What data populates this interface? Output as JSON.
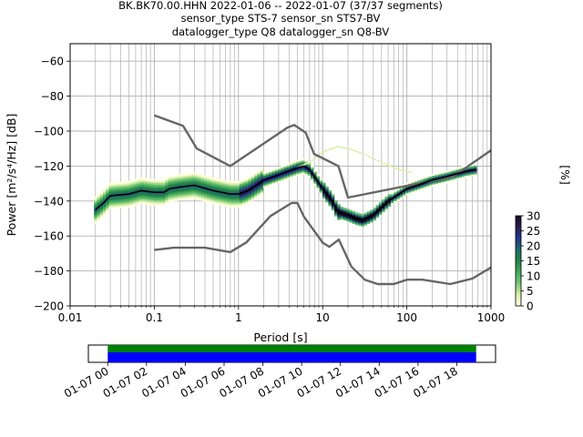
{
  "chart_data": [
    {
      "type": "heatmap",
      "title_lines": [
        "BK.BK70.00.HHN   2022-01-06 -- 2022-01-07  (37/37 segments)",
        "sensor_type STS-7 sensor_sn STS7-BV",
        "datalogger_type Q8 datalogger_sn Q8-BV"
      ],
      "xlabel": "Period [s]",
      "ylabel": "Power [m²/s⁴/Hz] [dB]",
      "x_scale": "log",
      "xlim": [
        0.01,
        1000
      ],
      "ylim": [
        -200,
        -50
      ],
      "x_tick_labels": [
        "0.01",
        "0.1",
        "1",
        "10",
        "100",
        "1000"
      ],
      "y_tick_labels": [
        "−60",
        "−80",
        "−100",
        "−120",
        "−140",
        "−160",
        "−180",
        "−200"
      ],
      "grid": true,
      "colorbar": {
        "label": "[%]",
        "range": [
          0,
          30
        ],
        "tick_labels": [
          "0",
          "5",
          "10",
          "15",
          "20",
          "25",
          "30"
        ],
        "colors": [
          "#ffffe5",
          "#d9f0a3",
          "#78c679",
          "#41ab5d",
          "#238443",
          "#1d6e6b",
          "#253494",
          "#2c1e4f",
          "#120a1f"
        ]
      },
      "noise_model_color": "#666666",
      "high_noise_model": [
        [
          0.1,
          -91
        ],
        [
          0.22,
          -97
        ],
        [
          0.32,
          -110
        ],
        [
          0.8,
          -120
        ],
        [
          3.8,
          -98
        ],
        [
          4.6,
          -96.5
        ],
        [
          6.3,
          -101
        ],
        [
          7.9,
          -113
        ],
        [
          15.4,
          -120
        ],
        [
          20,
          -138
        ],
        [
          354.8,
          -126
        ],
        [
          1000,
          -111
        ]
      ],
      "low_noise_model": [
        [
          0.1,
          -168
        ],
        [
          0.17,
          -166.7
        ],
        [
          0.4,
          -166.7
        ],
        [
          0.8,
          -169.2
        ],
        [
          1.24,
          -163.7
        ],
        [
          2.4,
          -148.6
        ],
        [
          4.3,
          -141.1
        ],
        [
          5,
          -141.1
        ],
        [
          6,
          -149
        ],
        [
          10,
          -163.8
        ],
        [
          12,
          -166.2
        ],
        [
          15.6,
          -162.1
        ],
        [
          21.9,
          -177.5
        ],
        [
          31.6,
          -185
        ],
        [
          45,
          -187.5
        ],
        [
          70,
          -187.5
        ],
        [
          101,
          -185
        ],
        [
          154,
          -185
        ],
        [
          328,
          -187.5
        ],
        [
          600,
          -184.4
        ],
        [
          1000,
          -178
        ]
      ],
      "mean_curve_color": "#000000",
      "mean_curve": [
        [
          0.02,
          -145
        ],
        [
          0.025,
          -141
        ],
        [
          0.03,
          -137
        ],
        [
          0.05,
          -136
        ],
        [
          0.07,
          -134
        ],
        [
          0.1,
          -135
        ],
        [
          0.13,
          -135
        ],
        [
          0.15,
          -133
        ],
        [
          0.2,
          -132
        ],
        [
          0.3,
          -131
        ],
        [
          0.5,
          -134
        ],
        [
          0.8,
          -136
        ],
        [
          1.0,
          -136
        ],
        [
          1.3,
          -134
        ],
        [
          2.0,
          -128
        ],
        [
          3.0,
          -125
        ],
        [
          5.0,
          -121
        ],
        [
          6.0,
          -120
        ],
        [
          7.0,
          -122
        ],
        [
          8.0,
          -126
        ],
        [
          10,
          -133
        ],
        [
          13,
          -140
        ],
        [
          15,
          -146
        ],
        [
          20,
          -148
        ],
        [
          25,
          -150
        ],
        [
          30,
          -151
        ],
        [
          40,
          -148
        ],
        [
          60,
          -140
        ],
        [
          100,
          -133
        ],
        [
          200,
          -128
        ],
        [
          300,
          -126
        ],
        [
          500,
          -123
        ],
        [
          650,
          -122
        ]
      ],
      "faint_branch": [
        [
          5,
          -121
        ],
        [
          7,
          -118
        ],
        [
          10,
          -112
        ],
        [
          15,
          -109
        ],
        [
          20,
          -110
        ],
        [
          30,
          -113
        ],
        [
          50,
          -118
        ],
        [
          80,
          -122
        ],
        [
          120,
          -124
        ]
      ],
      "timeline": {
        "tick_labels": [
          "01-07 00",
          "01-07 02",
          "01-07 04",
          "01-07 06",
          "01-07 08",
          "01-07 10",
          "01-07 12",
          "01-07 14",
          "01-07 16",
          "01-07 18"
        ],
        "hours": [
          0,
          2,
          4,
          6,
          8,
          10,
          12,
          14,
          16,
          18
        ],
        "range_hours": [
          -1,
          20
        ],
        "data_coverage_hours": [
          0,
          19
        ],
        "segments_hours": [
          0,
          19
        ],
        "coverage_color": "#008000",
        "segments_color": "#0000ff"
      }
    }
  ]
}
